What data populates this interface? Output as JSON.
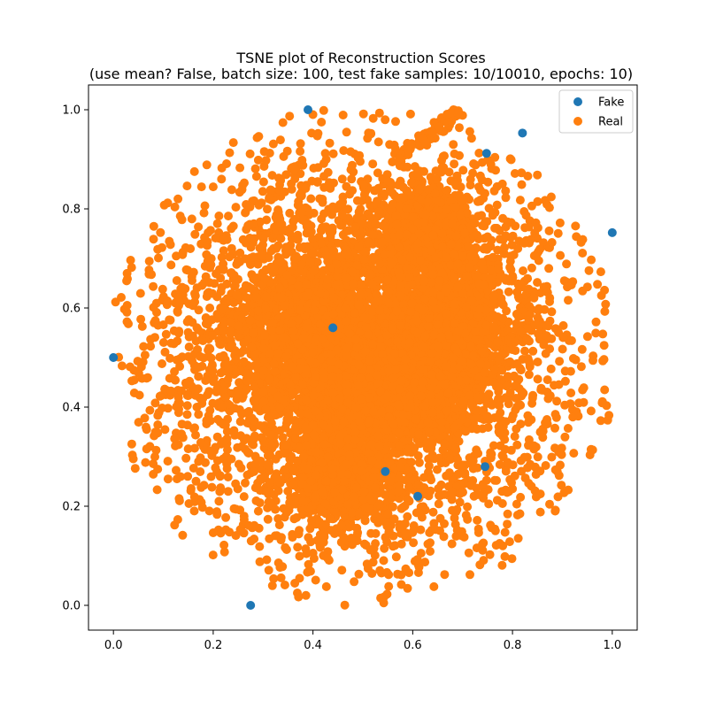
{
  "chart_data": {
    "type": "scatter",
    "title": "TSNE plot of Reconstruction Scores",
    "subtitle": "(use mean? False, batch size: 100, test fake samples: 10/10010, epochs: 10)",
    "xlim": [
      -0.05,
      1.05
    ],
    "ylim": [
      -0.05,
      1.05
    ],
    "x_ticks": [
      "0.0",
      "0.2",
      "0.4",
      "0.6",
      "0.8",
      "1.0"
    ],
    "y_ticks": [
      "0.0",
      "0.2",
      "0.4",
      "0.6",
      "0.8",
      "1.0"
    ],
    "grid": false,
    "legend_position": "top-right",
    "series": [
      {
        "name": "Fake",
        "color": "#1f77b4",
        "points": [
          [
            0.0,
            0.5
          ],
          [
            0.39,
            1.0
          ],
          [
            0.275,
            0.0
          ],
          [
            1.0,
            0.752
          ],
          [
            0.82,
            0.953
          ],
          [
            0.748,
            0.912
          ],
          [
            0.745,
            0.28
          ],
          [
            0.545,
            0.27
          ],
          [
            0.61,
            0.22
          ],
          [
            0.44,
            0.56
          ]
        ]
      },
      {
        "name": "Real",
        "color": "#ff7f0e",
        "count": 10000,
        "clusters": [
          {
            "cx": 0.5,
            "cy": 0.5,
            "sx": 0.21,
            "sy": 0.21,
            "weight": 0.5
          },
          {
            "cx": 0.66,
            "cy": 0.55,
            "sx": 0.06,
            "sy": 0.06,
            "weight": 0.1
          },
          {
            "cx": 0.63,
            "cy": 0.75,
            "sx": 0.05,
            "sy": 0.05,
            "weight": 0.08
          },
          {
            "cx": 0.38,
            "cy": 0.55,
            "sx": 0.05,
            "sy": 0.06,
            "weight": 0.08
          },
          {
            "cx": 0.46,
            "cy": 0.25,
            "sx": 0.05,
            "sy": 0.04,
            "weight": 0.06
          },
          {
            "cx": 0.52,
            "cy": 0.42,
            "sx": 0.05,
            "sy": 0.05,
            "weight": 0.08
          },
          {
            "cx": 0.6,
            "cy": 0.47,
            "sx": 0.06,
            "sy": 0.05,
            "weight": 0.1
          }
        ]
      }
    ]
  }
}
